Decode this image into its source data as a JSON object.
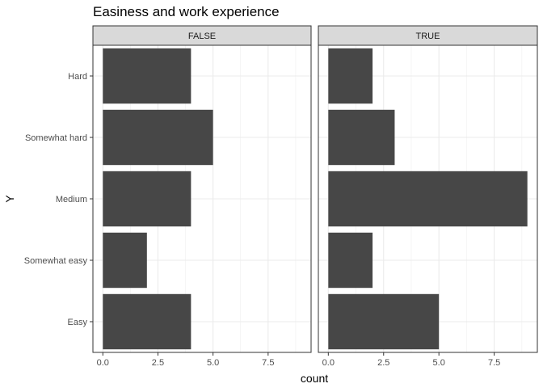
{
  "chart_data": {
    "type": "bar",
    "orientation": "horizontal",
    "title": "Easiness and work experience",
    "xlabel": "count",
    "ylabel": "Y",
    "categories": [
      "Easy",
      "Somewhat easy",
      "Medium",
      "Somewhat hard",
      "Hard"
    ],
    "xlim": [
      -0.45,
      9.45
    ],
    "xticks": [
      0.0,
      2.5,
      5.0,
      7.5
    ],
    "xtick_labels": [
      "0.0",
      "2.5",
      "5.0",
      "7.5"
    ],
    "grid": true,
    "bar_color": "#474747",
    "strip_fill": "#d9d9d9",
    "facets": [
      {
        "label": "FALSE",
        "values": [
          4,
          2,
          4,
          5,
          4
        ]
      },
      {
        "label": "TRUE",
        "values": [
          5,
          2,
          9,
          3,
          2
        ]
      }
    ]
  }
}
